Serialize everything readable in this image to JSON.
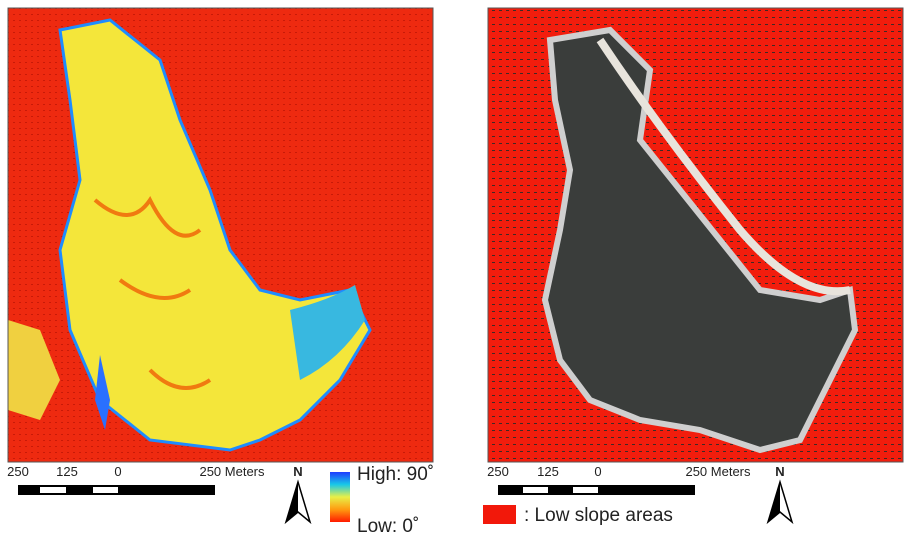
{
  "left_panel": {
    "scale_labels": [
      "250",
      "125",
      "0",
      "250 Meters"
    ],
    "north": "N",
    "legend": {
      "high": "High: 90˚",
      "low": "Low: 0˚"
    }
  },
  "right_panel": {
    "scale_labels": [
      "250",
      "125",
      "0",
      "250 Meters"
    ],
    "north": "N",
    "legend": {
      "label": ": Low slope areas"
    }
  }
}
